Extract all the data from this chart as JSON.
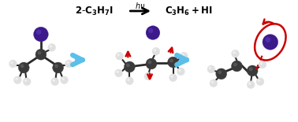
{
  "background_color": "#ffffff",
  "iodine_color": "#3d1a8a",
  "iodine_highlight": "#6040cc",
  "carbon_color": "#3a3a3a",
  "carbon_highlight": "#707070",
  "hydrogen_color": "#e0e0e0",
  "hydrogen_highlight": "#ffffff",
  "bond_color": "#2a2a2a",
  "arrow_blue": "#5bbfea",
  "arrow_red": "#cc0000",
  "fig_width": 3.78,
  "fig_height": 1.55,
  "dpi": 100,
  "eq_reactant": "2-C$_3$H$_7$I",
  "eq_hv": "h$\\nu$",
  "eq_arrow": "→",
  "eq_product": "C$_3$H$_6$ + HI"
}
